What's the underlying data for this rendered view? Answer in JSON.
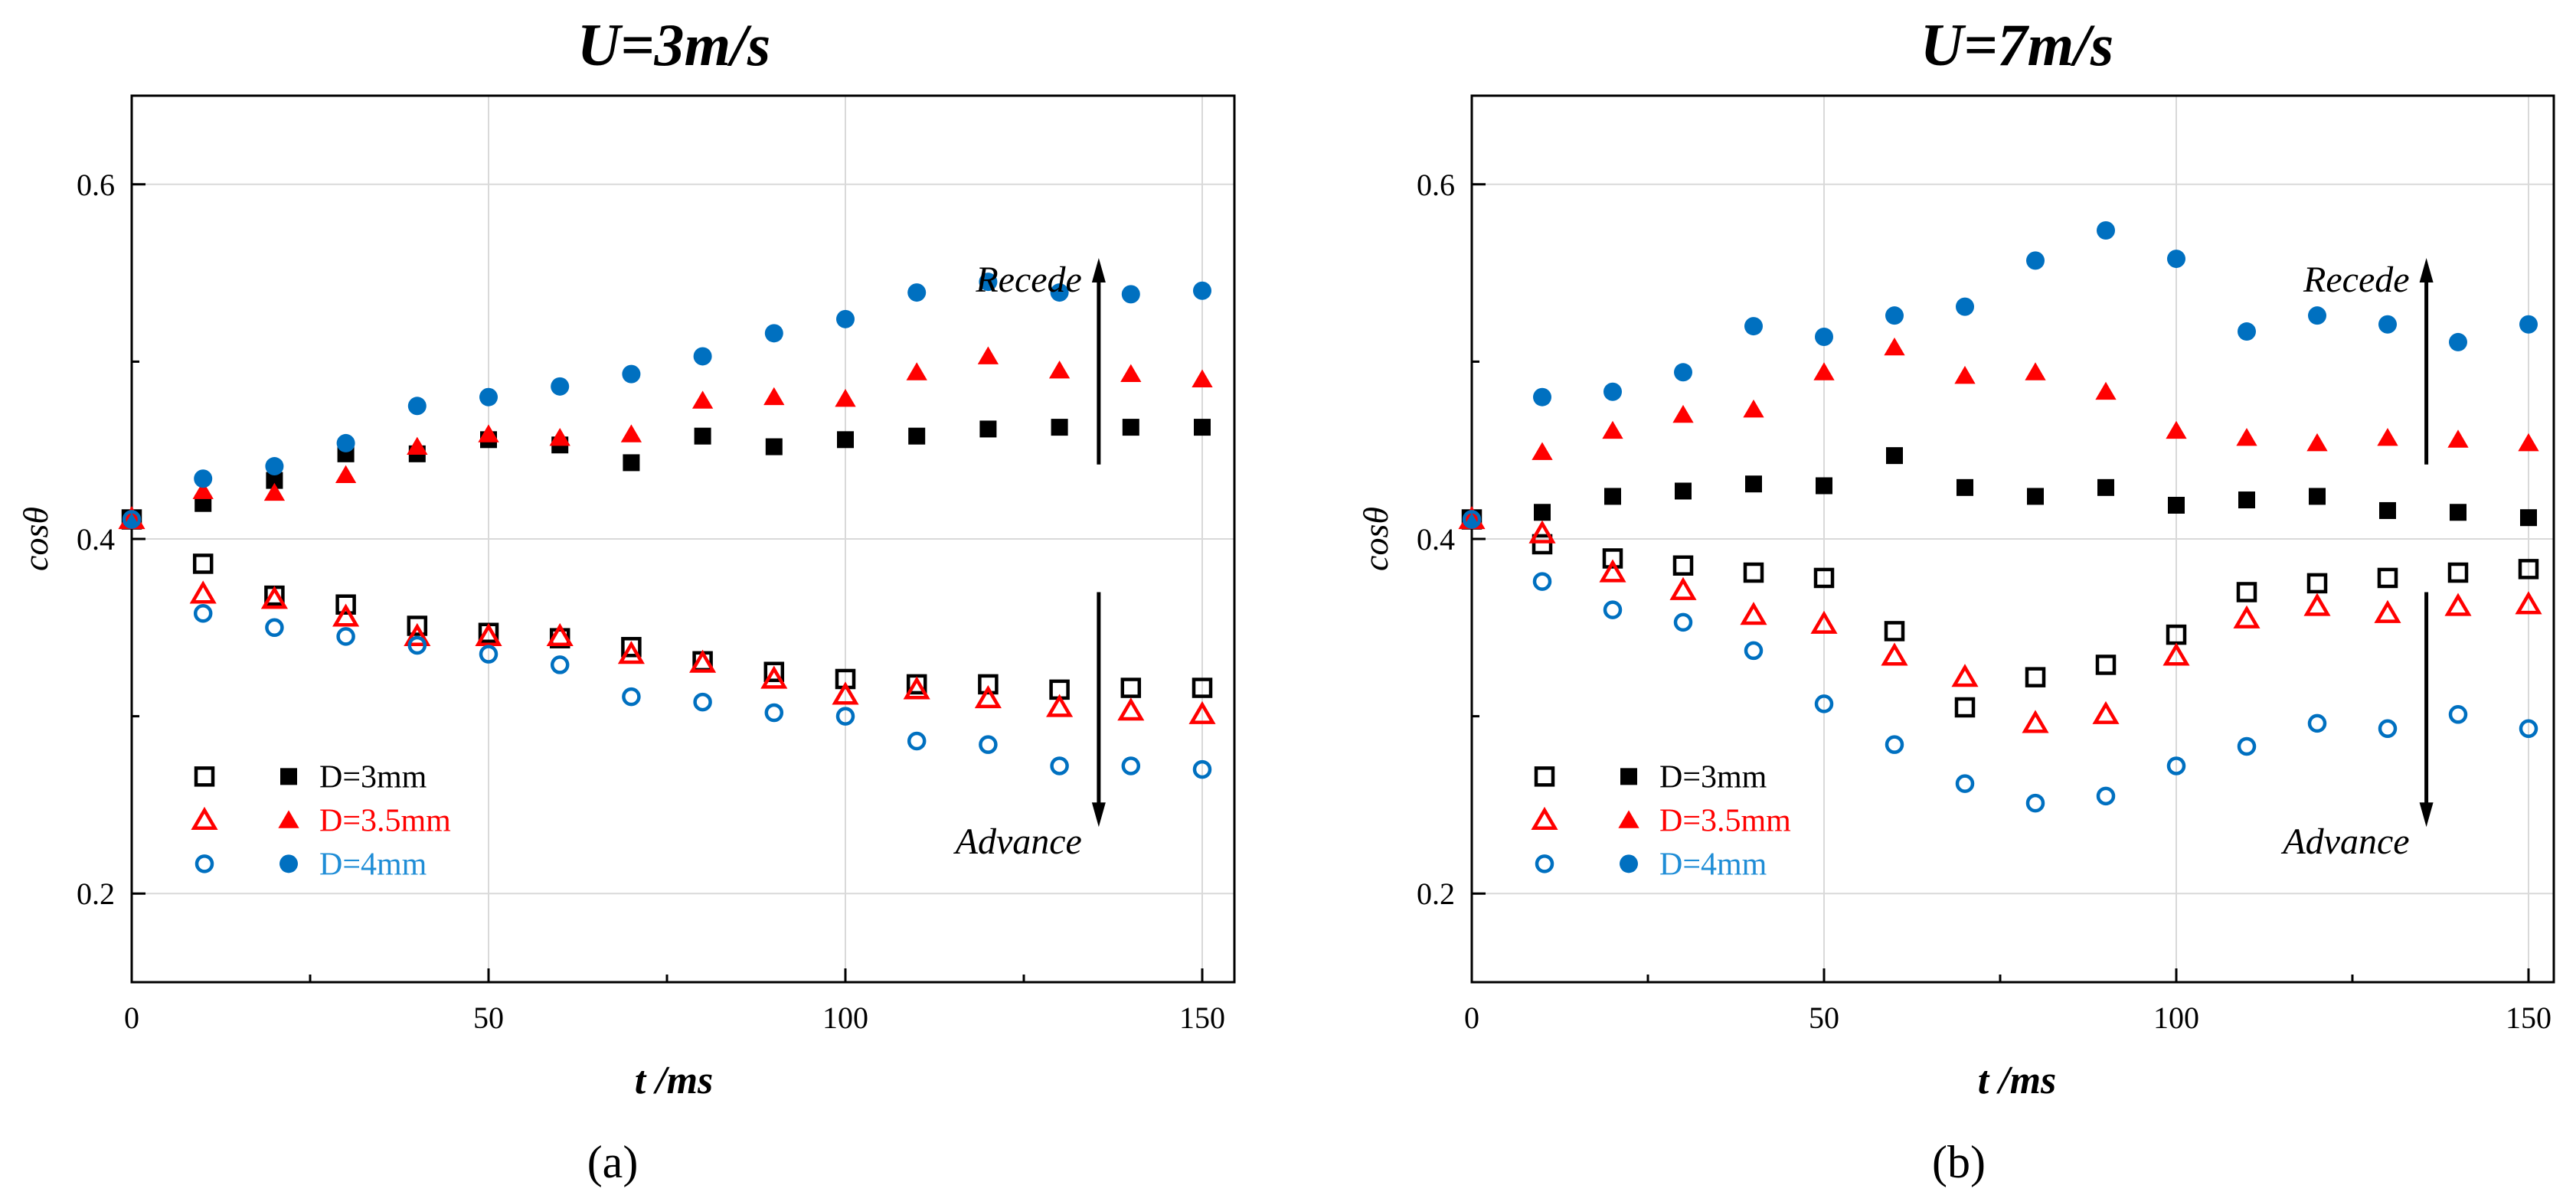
{
  "figure": {
    "panel_labels": [
      "(a)",
      "(b)"
    ]
  },
  "colors": {
    "black": "#000000",
    "red": "#ff0000",
    "blue": "#0070c0",
    "grid": "#d9d9d9",
    "legend_blue_text": "#1f8dd6"
  },
  "chart_data": [
    {
      "type": "scatter",
      "title": "U=3m/s",
      "xlabel": "t /ms",
      "ylabel": "cosθ",
      "xlim": [
        0,
        155
      ],
      "ylim": [
        0.15,
        0.65
      ],
      "xticks": [
        "0",
        "50",
        "100",
        "150"
      ],
      "yticks": [
        "0.2",
        "0.4",
        "0.6"
      ],
      "grid": true,
      "legend_position": "bottom-left",
      "annotations": {
        "recede": "Recede",
        "advance": "Advance"
      },
      "series": [
        {
          "name": "D=3mm",
          "variant": "recede",
          "color": "#000000",
          "marker": "square-filled",
          "x": [
            0,
            10,
            20,
            30,
            40,
            50,
            60,
            70,
            80,
            90,
            100,
            110,
            120,
            130,
            140,
            150
          ],
          "y": [
            0.411,
            0.42,
            0.433,
            0.448,
            0.448,
            0.456,
            0.453,
            0.443,
            0.458,
            0.452,
            0.456,
            0.458,
            0.462,
            0.463,
            0.463,
            0.463
          ]
        },
        {
          "name": "D=3.5mm",
          "variant": "recede",
          "color": "#ff0000",
          "marker": "triangle-filled",
          "x": [
            0,
            10,
            20,
            30,
            40,
            50,
            60,
            70,
            80,
            90,
            100,
            110,
            120,
            130,
            140,
            150
          ],
          "y": [
            0.411,
            0.427,
            0.426,
            0.436,
            0.452,
            0.459,
            0.457,
            0.459,
            0.478,
            0.48,
            0.479,
            0.494,
            0.503,
            0.495,
            0.493,
            0.49
          ]
        },
        {
          "name": "D=4mm",
          "variant": "recede",
          "color": "#0070c0",
          "marker": "circle-filled",
          "x": [
            0,
            10,
            20,
            30,
            40,
            50,
            60,
            70,
            80,
            90,
            100,
            110,
            120,
            130,
            140,
            150
          ],
          "y": [
            0.411,
            0.434,
            0.441,
            0.454,
            0.475,
            0.48,
            0.486,
            0.493,
            0.503,
            0.516,
            0.524,
            0.539,
            0.545,
            0.539,
            0.538,
            0.54
          ]
        },
        {
          "name": "D=3mm",
          "variant": "advance",
          "color": "#000000",
          "marker": "square-open",
          "x": [
            0,
            10,
            20,
            30,
            40,
            50,
            60,
            70,
            80,
            90,
            100,
            110,
            120,
            130,
            140,
            150
          ],
          "y": [
            0.411,
            0.386,
            0.368,
            0.363,
            0.351,
            0.347,
            0.344,
            0.339,
            0.331,
            0.325,
            0.321,
            0.318,
            0.318,
            0.315,
            0.316,
            0.316
          ]
        },
        {
          "name": "D=3.5mm",
          "variant": "advance",
          "color": "#ff0000",
          "marker": "triangle-open",
          "x": [
            0,
            10,
            20,
            30,
            40,
            50,
            60,
            70,
            80,
            90,
            100,
            110,
            120,
            130,
            140,
            150
          ],
          "y": [
            0.411,
            0.369,
            0.366,
            0.356,
            0.345,
            0.345,
            0.345,
            0.335,
            0.33,
            0.321,
            0.312,
            0.315,
            0.31,
            0.305,
            0.303,
            0.301
          ]
        },
        {
          "name": "D=4mm",
          "variant": "advance",
          "color": "#0070c0",
          "marker": "circle-open",
          "x": [
            0,
            10,
            20,
            30,
            40,
            50,
            60,
            70,
            80,
            90,
            100,
            110,
            120,
            130,
            140,
            150
          ],
          "y": [
            0.411,
            0.358,
            0.35,
            0.345,
            0.34,
            0.335,
            0.329,
            0.311,
            0.308,
            0.302,
            0.3,
            0.286,
            0.284,
            0.272,
            0.272,
            0.27
          ]
        }
      ]
    },
    {
      "type": "scatter",
      "title": "U=7m/s",
      "xlabel": "t /ms",
      "ylabel": "cosθ",
      "xlim": [
        0,
        155
      ],
      "ylim": [
        0.15,
        0.65
      ],
      "xticks": [
        "0",
        "50",
        "100",
        "150"
      ],
      "yticks": [
        "0.2",
        "0.4",
        "0.6"
      ],
      "grid": true,
      "legend_position": "bottom-left",
      "annotations": {
        "recede": "Recede",
        "advance": "Advance"
      },
      "series": [
        {
          "name": "D=3mm",
          "variant": "recede",
          "color": "#000000",
          "marker": "square-filled",
          "x": [
            0,
            10,
            20,
            30,
            40,
            50,
            60,
            70,
            80,
            90,
            100,
            110,
            120,
            130,
            140,
            150
          ],
          "y": [
            0.411,
            0.415,
            0.424,
            0.427,
            0.431,
            0.43,
            0.447,
            0.429,
            0.424,
            0.429,
            0.419,
            0.422,
            0.424,
            0.416,
            0.415,
            0.412
          ]
        },
        {
          "name": "D=3.5mm",
          "variant": "recede",
          "color": "#ff0000",
          "marker": "triangle-filled",
          "x": [
            0,
            10,
            20,
            30,
            40,
            50,
            60,
            70,
            80,
            90,
            100,
            110,
            120,
            130,
            140,
            150
          ],
          "y": [
            0.411,
            0.449,
            0.461,
            0.47,
            0.473,
            0.494,
            0.508,
            0.492,
            0.494,
            0.483,
            0.461,
            0.457,
            0.454,
            0.457,
            0.456,
            0.454
          ]
        },
        {
          "name": "D=4mm",
          "variant": "recede",
          "color": "#0070c0",
          "marker": "circle-filled",
          "x": [
            0,
            10,
            20,
            30,
            40,
            50,
            60,
            70,
            80,
            90,
            100,
            110,
            120,
            130,
            140,
            150
          ],
          "y": [
            0.411,
            0.48,
            0.483,
            0.494,
            0.52,
            0.514,
            0.526,
            0.531,
            0.557,
            0.574,
            0.558,
            0.517,
            0.526,
            0.521,
            0.511,
            0.521
          ]
        },
        {
          "name": "D=3mm",
          "variant": "advance",
          "color": "#000000",
          "marker": "square-open",
          "x": [
            0,
            10,
            20,
            30,
            40,
            50,
            60,
            70,
            80,
            90,
            100,
            110,
            120,
            130,
            140,
            150
          ],
          "y": [
            0.411,
            0.397,
            0.389,
            0.385,
            0.381,
            0.378,
            0.348,
            0.305,
            0.322,
            0.329,
            0.346,
            0.37,
            0.375,
            0.378,
            0.381,
            0.383
          ]
        },
        {
          "name": "D=3.5mm",
          "variant": "advance",
          "color": "#ff0000",
          "marker": "triangle-open",
          "x": [
            0,
            10,
            20,
            30,
            40,
            50,
            60,
            70,
            80,
            90,
            100,
            110,
            120,
            130,
            140,
            150
          ],
          "y": [
            0.411,
            0.403,
            0.381,
            0.371,
            0.357,
            0.352,
            0.334,
            0.322,
            0.296,
            0.301,
            0.334,
            0.355,
            0.362,
            0.358,
            0.362,
            0.363
          ]
        },
        {
          "name": "D=4mm",
          "variant": "advance",
          "color": "#0070c0",
          "marker": "circle-open",
          "x": [
            0,
            10,
            20,
            30,
            40,
            50,
            60,
            70,
            80,
            90,
            100,
            110,
            120,
            130,
            140,
            150
          ],
          "y": [
            0.411,
            0.376,
            0.36,
            0.353,
            0.337,
            0.307,
            0.284,
            0.262,
            0.251,
            0.255,
            0.272,
            0.283,
            0.296,
            0.293,
            0.301,
            0.293
          ]
        }
      ]
    }
  ]
}
